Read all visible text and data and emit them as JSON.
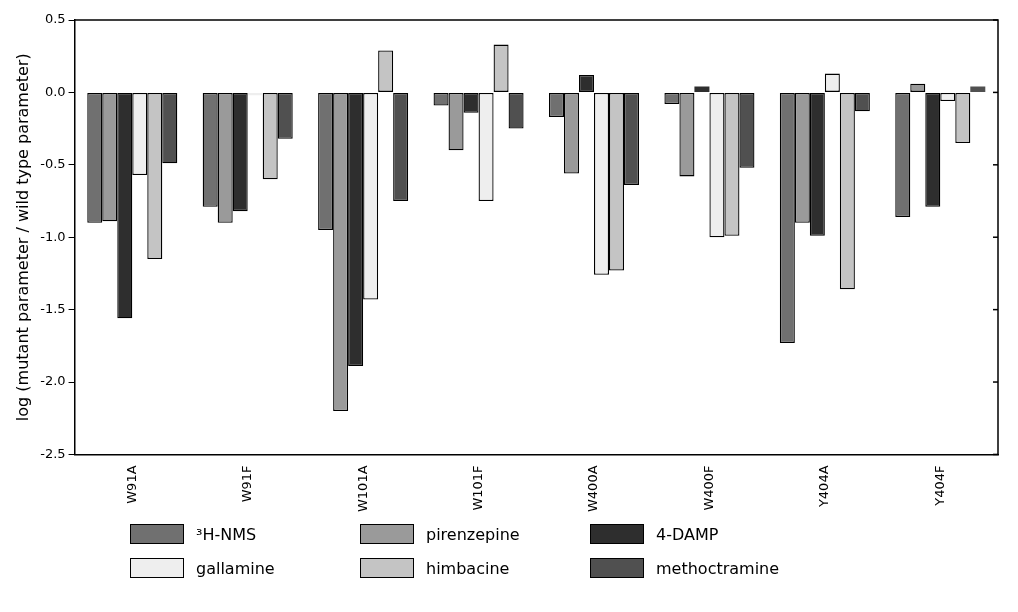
{
  "chart_data": {
    "type": "bar",
    "ylabel": "log (mutant parameter / wild type parameter)",
    "categories": [
      "W91A",
      "W91F",
      "W101A",
      "W101F",
      "W400A",
      "W400F",
      "Y404A",
      "Y404F"
    ],
    "series": [
      {
        "name": "³H-NMS",
        "color": "#707070",
        "values": [
          -0.9,
          -0.79,
          -0.95,
          -0.09,
          -0.17,
          -0.08,
          -1.73,
          -0.86
        ]
      },
      {
        "name": "pirenzepine",
        "color": "#9a9a9a",
        "values": [
          -0.89,
          -0.9,
          -2.2,
          -0.4,
          -0.56,
          -0.58,
          -0.9,
          0.06
        ]
      },
      {
        "name": "4-DAMP",
        "color": "#2e2e2e",
        "values": [
          -1.56,
          -0.82,
          -1.89,
          -0.14,
          0.12,
          0.04,
          -0.99,
          -0.79
        ]
      },
      {
        "name": "gallamine",
        "color": "#eeeeee",
        "values": [
          -0.57,
          -0.02,
          -1.43,
          -0.75,
          -1.26,
          -1.0,
          0.13,
          -0.06
        ]
      },
      {
        "name": "himbacine",
        "color": "#c4c4c4",
        "values": [
          -1.15,
          -0.6,
          0.29,
          0.33,
          -1.23,
          -0.99,
          -1.36,
          -0.35
        ]
      },
      {
        "name": "methoctramine",
        "color": "#505050",
        "values": [
          -0.49,
          -0.32,
          -0.75,
          -0.25,
          -0.64,
          -0.52,
          -0.13,
          0.04
        ]
      }
    ],
    "ylim": [
      -2.5,
      0.5
    ],
    "yticks": [
      {
        "value": 0.5,
        "label": "0.5"
      },
      {
        "value": 0,
        "label": "0.0"
      },
      {
        "value": -0.5,
        "label": "-0.5"
      },
      {
        "value": -1,
        "label": "-1.0"
      },
      {
        "value": -1.5,
        "label": "-1.5"
      },
      {
        "value": -2,
        "label": "-2.0"
      },
      {
        "value": -2.5,
        "label": "-2.5"
      }
    ],
    "grid": false,
    "legend": "bottom"
  }
}
